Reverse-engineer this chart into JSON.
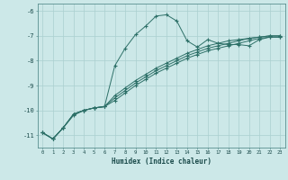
{
  "xlabel": "Humidex (Indice chaleur)",
  "bg_color": "#cce8e8",
  "grid_color": "#aacfcf",
  "line_color": "#2d7068",
  "xlim_min": -0.5,
  "xlim_max": 23.5,
  "ylim_min": -11.5,
  "ylim_max": -5.7,
  "yticks": [
    -11,
    -10,
    -9,
    -8,
    -7,
    -6
  ],
  "xticks": [
    0,
    1,
    2,
    3,
    4,
    5,
    6,
    7,
    8,
    9,
    10,
    11,
    12,
    13,
    14,
    15,
    16,
    17,
    18,
    19,
    20,
    21,
    22,
    23
  ],
  "line1_x": [
    0,
    1,
    2,
    3,
    4,
    5,
    6,
    7,
    8,
    9,
    10,
    11,
    12,
    13,
    14,
    15,
    16,
    17,
    18,
    19,
    20,
    21,
    22,
    23
  ],
  "line1_y": [
    -10.9,
    -11.15,
    -10.7,
    -10.2,
    -10.0,
    -9.9,
    -9.85,
    -8.2,
    -7.5,
    -6.95,
    -6.6,
    -6.2,
    -6.15,
    -6.4,
    -7.2,
    -7.45,
    -7.15,
    -7.3,
    -7.35,
    -7.35,
    -7.4,
    -7.15,
    -7.05,
    -7.05
  ],
  "line2_x": [
    0,
    1,
    2,
    3,
    4,
    5,
    6,
    7,
    8,
    9,
    10,
    11,
    12,
    13,
    14,
    15,
    16,
    17,
    18,
    19,
    20,
    21,
    22,
    23
  ],
  "line2_y": [
    -10.9,
    -11.15,
    -10.7,
    -10.15,
    -10.0,
    -9.9,
    -9.85,
    -9.4,
    -9.1,
    -8.8,
    -8.55,
    -8.3,
    -8.1,
    -7.9,
    -7.7,
    -7.55,
    -7.4,
    -7.3,
    -7.2,
    -7.15,
    -7.1,
    -7.05,
    -7.0,
    -7.0
  ],
  "line3_x": [
    0,
    1,
    2,
    3,
    4,
    5,
    6,
    7,
    8,
    9,
    10,
    11,
    12,
    13,
    14,
    15,
    16,
    17,
    18,
    19,
    20,
    21,
    22,
    23
  ],
  "line3_y": [
    -10.9,
    -11.15,
    -10.7,
    -10.15,
    -10.0,
    -9.9,
    -9.85,
    -9.5,
    -9.2,
    -8.9,
    -8.65,
    -8.4,
    -8.2,
    -8.0,
    -7.8,
    -7.65,
    -7.5,
    -7.4,
    -7.3,
    -7.2,
    -7.1,
    -7.05,
    -7.0,
    -7.0
  ],
  "line4_x": [
    0,
    1,
    2,
    3,
    4,
    5,
    6,
    7,
    8,
    9,
    10,
    11,
    12,
    13,
    14,
    15,
    16,
    17,
    18,
    19,
    20,
    21,
    22,
    23
  ],
  "line4_y": [
    -10.9,
    -11.15,
    -10.7,
    -10.15,
    -10.0,
    -9.9,
    -9.85,
    -9.6,
    -9.3,
    -9.0,
    -8.75,
    -8.5,
    -8.3,
    -8.1,
    -7.9,
    -7.75,
    -7.6,
    -7.5,
    -7.4,
    -7.3,
    -7.2,
    -7.1,
    -7.05,
    -7.05
  ]
}
